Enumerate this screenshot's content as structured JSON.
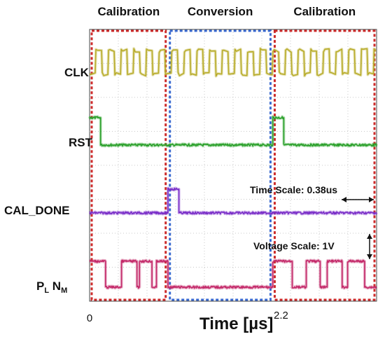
{
  "chart_data": {
    "type": "line",
    "title": "",
    "xlabel": "Time [µs]",
    "ylabel": "",
    "x_ticks": [
      {
        "value": 0,
        "label": "0"
      },
      {
        "value": 2.2,
        "label": "2.2"
      }
    ],
    "xlim": [
      0,
      3.45
    ],
    "grid": true,
    "phases": [
      {
        "label": "Calibration",
        "start": 0.0,
        "end": 0.94,
        "color": "#cc2a2a"
      },
      {
        "label": "Conversion",
        "start": 0.94,
        "end": 2.2,
        "color": "#3a6ad0"
      },
      {
        "label": "Calibration",
        "start": 2.2,
        "end": 3.45,
        "color": "#cc2a2a"
      }
    ],
    "series": [
      {
        "name": "CLK",
        "color": "#b8ac2a",
        "kind": "clock",
        "clock_period_us": 0.152
      },
      {
        "name": "RST",
        "color": "#2aa02a",
        "kind": "pulses",
        "pulses": [
          [
            0.0,
            0.13
          ],
          [
            2.2,
            2.33
          ]
        ]
      },
      {
        "name": "CAL_DONE",
        "color": "#7a2ec8",
        "kind": "pulses",
        "pulses": [
          [
            0.94,
            1.07
          ]
        ]
      },
      {
        "name_main": "P",
        "name_sub1": "L",
        "name_mid": " N",
        "name_sub2": "M",
        "color": "#c42a6a",
        "kind": "pulses",
        "pulses": [
          [
            0.0,
            0.19
          ],
          [
            0.38,
            0.57
          ],
          [
            0.6,
            0.75
          ],
          [
            0.8,
            0.94
          ],
          [
            2.2,
            2.43
          ],
          [
            2.6,
            2.77
          ],
          [
            2.85,
            3.03
          ],
          [
            3.1,
            3.3
          ]
        ]
      }
    ],
    "annotations": {
      "time_scale": "Time Scale: 0.38us",
      "voltage_scale": "Voltage Scale: 1V"
    }
  }
}
